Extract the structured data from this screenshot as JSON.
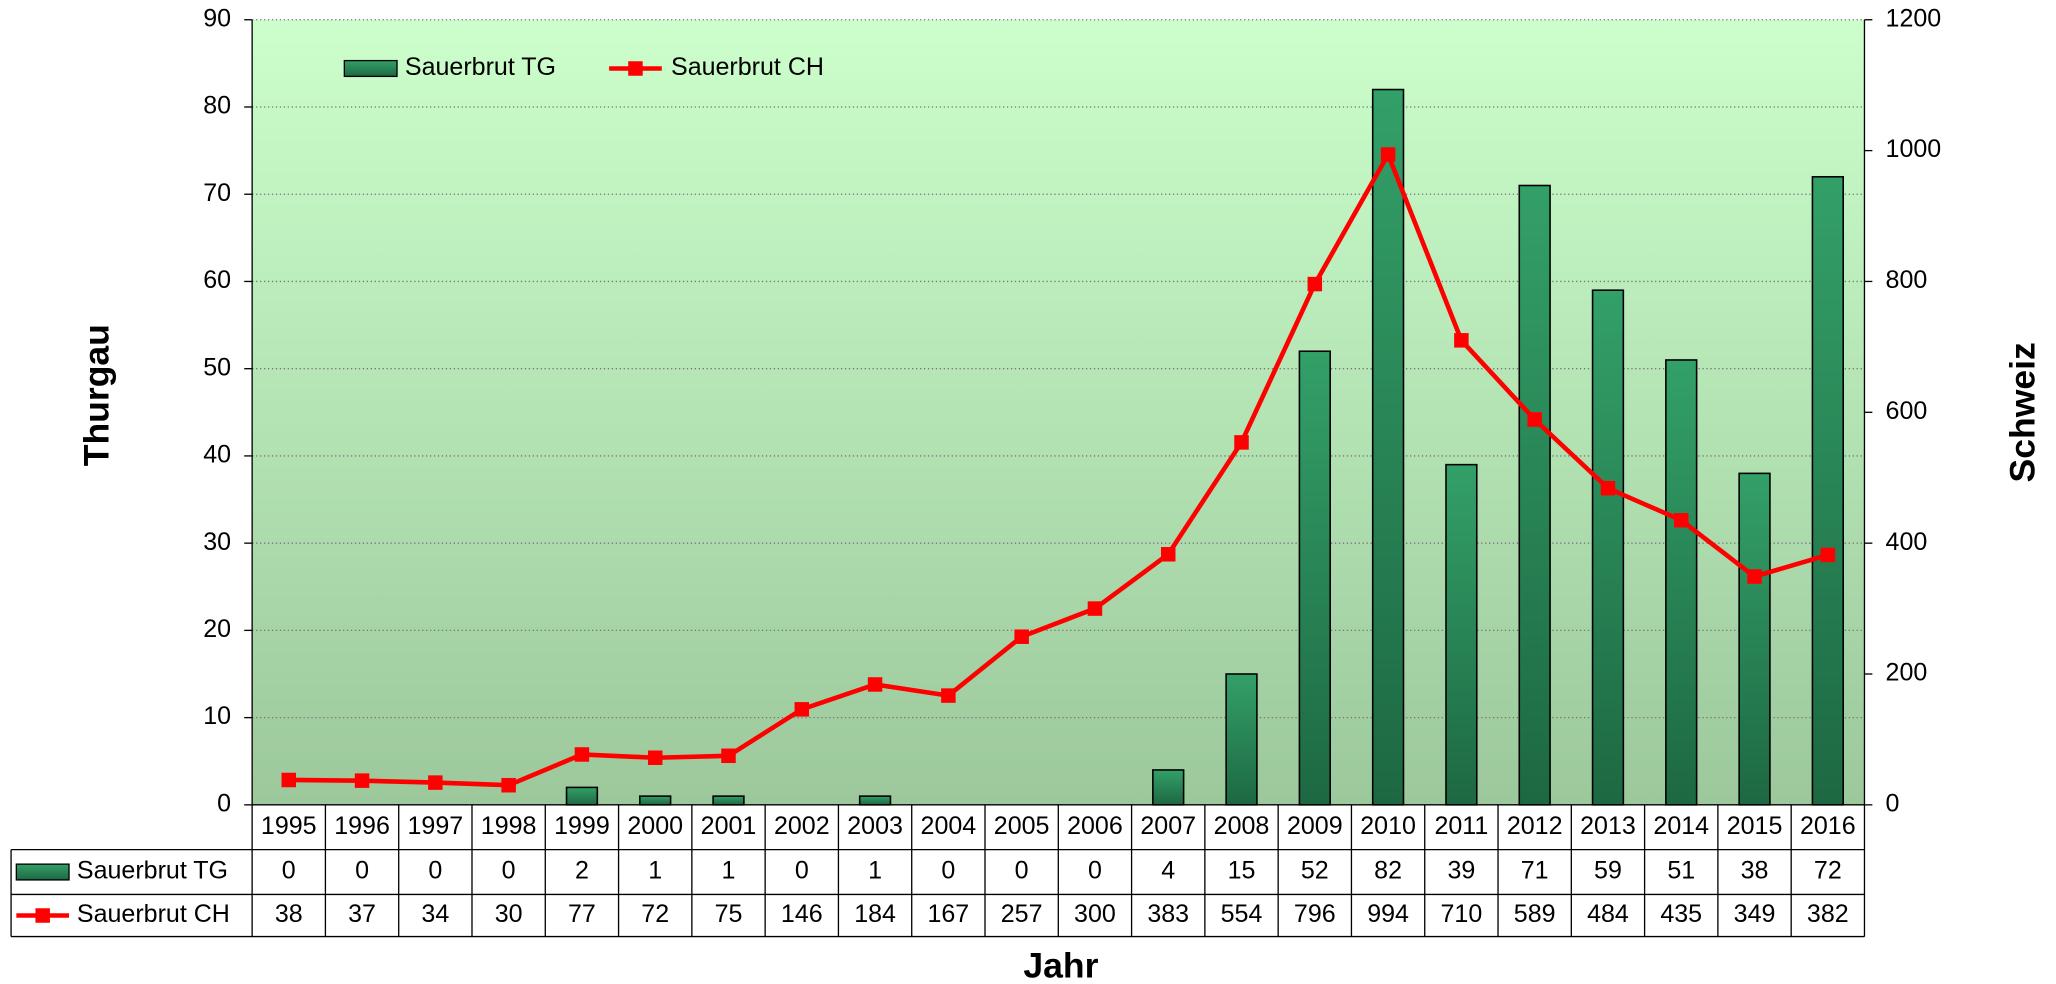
{
  "chart_data": {
    "type": "bar",
    "xlabel": "Jahr",
    "ylabel": "Thurgau",
    "y2label": "Schweiz",
    "categories": [
      "1995",
      "1996",
      "1997",
      "1998",
      "1999",
      "2000",
      "2001",
      "2002",
      "2003",
      "2004",
      "2005",
      "2006",
      "2007",
      "2008",
      "2009",
      "2010",
      "2011",
      "2012",
      "2013",
      "2014",
      "2015",
      "2016"
    ],
    "series": [
      {
        "name": "Sauerbrut TG",
        "type": "bar",
        "color": "#2a8a58",
        "values": [
          0,
          0,
          0,
          0,
          2,
          1,
          1,
          0,
          1,
          0,
          0,
          0,
          4,
          15,
          52,
          82,
          39,
          71,
          59,
          51,
          38,
          72
        ]
      },
      {
        "name": "Sauerbrut CH",
        "type": "line",
        "axis": "y2",
        "color": "#ff0000",
        "values": [
          38,
          37,
          34,
          30,
          77,
          72,
          75,
          146,
          184,
          167,
          257,
          300,
          383,
          554,
          796,
          994,
          710,
          589,
          484,
          435,
          349,
          382
        ]
      }
    ],
    "ylim": [
      0,
      90
    ],
    "yticks": [
      0,
      10,
      20,
      30,
      40,
      50,
      60,
      70,
      80,
      90
    ],
    "y2lim": [
      0,
      1200
    ],
    "y2ticks": [
      0,
      200,
      400,
      600,
      800,
      1000,
      1200
    ],
    "grid": true,
    "legend": "top-left"
  }
}
